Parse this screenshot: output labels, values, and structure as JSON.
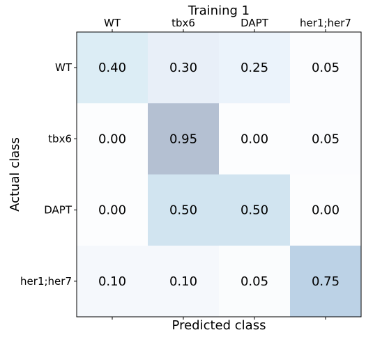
{
  "chart_data": {
    "type": "heatmap",
    "title": "Training 1",
    "xlabel": "Predicted class",
    "ylabel": "Actual class",
    "x_categories": [
      "WT",
      "tbx6",
      "DAPT",
      "her1;her7"
    ],
    "y_categories": [
      "WT",
      "tbx6",
      "DAPT",
      "her1;her7"
    ],
    "x_tick_position": "top",
    "values": [
      [
        0.4,
        0.3,
        0.25,
        0.05
      ],
      [
        0.0,
        0.95,
        0.0,
        0.05
      ],
      [
        0.0,
        0.5,
        0.5,
        0.0
      ],
      [
        0.1,
        0.1,
        0.05,
        0.75
      ]
    ],
    "value_labels": [
      [
        "0.40",
        "0.30",
        "0.25",
        "0.05"
      ],
      [
        "0.00",
        "0.95",
        "0.00",
        "0.05"
      ],
      [
        "0.00",
        "0.50",
        "0.50",
        "0.00"
      ],
      [
        "0.10",
        "0.10",
        "0.05",
        "0.75"
      ]
    ],
    "colorscale": [
      "#fcfdfe",
      "#b4c0d2"
    ],
    "cell_colors": [
      [
        "#dcedf5",
        "#e8eff8",
        "#ebf3fb",
        "#fbfcfe"
      ],
      [
        "#fcfdfe",
        "#b4c0d2",
        "#fcfdfe",
        "#fbfcfe"
      ],
      [
        "#fcfdfe",
        "#d1e4f0",
        "#d1e4f0",
        "#fcfdfe"
      ],
      [
        "#f5f8fc",
        "#f5f8fc",
        "#fafcfd",
        "#bcd2e6"
      ]
    ],
    "grid": false
  }
}
